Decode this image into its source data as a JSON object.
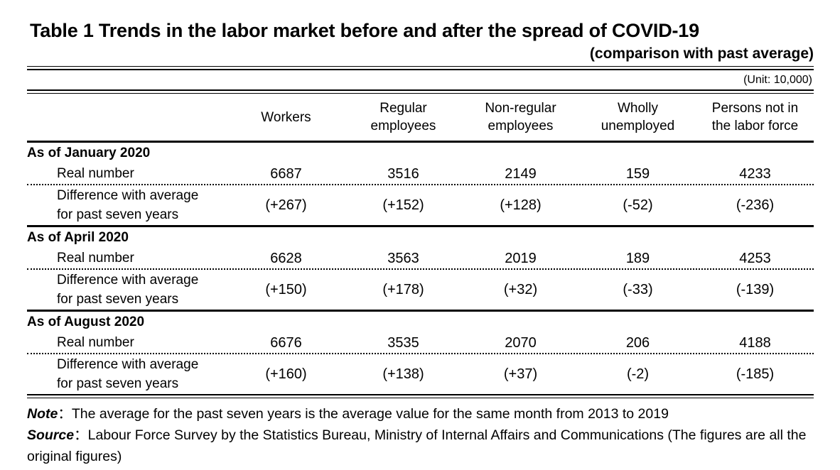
{
  "title": "Table 1 Trends in the labor market before and after the spread of COVID-19",
  "subtitle": "(comparison with past average)",
  "unit_note": "(Unit: 10,000)",
  "table": {
    "columns_display": [
      "Workers",
      "Regular\nemployees",
      "Non-regular\nemployees",
      "Wholly\nunemployed",
      "Persons not in\nthe labor force"
    ],
    "row_labels": {
      "real": "Real number",
      "diff": "Difference with average\nfor past seven years"
    },
    "sections": [
      {
        "label": "As of January 2020",
        "real": [
          "6687",
          "3516",
          "2149",
          "159",
          "4233"
        ],
        "diff": [
          "(+267)",
          "(+152)",
          "(+128)",
          "(-52)",
          "(-236)"
        ]
      },
      {
        "label": "As of April 2020",
        "real": [
          "6628",
          "3563",
          "2019",
          "189",
          "4253"
        ],
        "diff": [
          "(+150)",
          "(+178)",
          "(+32)",
          "(-33)",
          "(-139)"
        ]
      },
      {
        "label": "As of August 2020",
        "real": [
          "6676",
          "3535",
          "2070",
          "206",
          "4188"
        ],
        "diff": [
          "(+160)",
          "(+138)",
          "(+37)",
          "(-2)",
          "(-185)"
        ]
      }
    ]
  },
  "notes": {
    "note_label": "Note",
    "note_sep": "：",
    "note_text": "The average for the past seven years is the average value for the same month from 2013 to 2019",
    "source_label": "Source",
    "source_sep": "：",
    "source_text": "Labour Force Survey by the Statistics Bureau, Ministry of Internal Affairs and Communications (The figures are all the original figures)"
  },
  "chart_data": {
    "type": "table",
    "title": "Table 1 Trends in the labor market before and after the spread of COVID-19",
    "subtitle": "(comparison with past average)",
    "unit": "(Unit: 10,000)",
    "columns": [
      "Workers",
      "Regular employees",
      "Non-regular employees",
      "Wholly unemployed",
      "Persons not in the labor force"
    ],
    "rows": [
      {
        "group": "As of January 2020",
        "real_number": [
          6687,
          3516,
          2149,
          159,
          4233
        ],
        "difference_with_past_average": [
          267,
          152,
          128,
          -52,
          -236
        ]
      },
      {
        "group": "As of April 2020",
        "real_number": [
          6628,
          3563,
          2019,
          189,
          4253
        ],
        "difference_with_past_average": [
          150,
          178,
          32,
          -33,
          -139
        ]
      },
      {
        "group": "As of August 2020",
        "real_number": [
          6676,
          3535,
          2070,
          206,
          4188
        ],
        "difference_with_past_average": [
          160,
          138,
          37,
          -2,
          -185
        ]
      }
    ],
    "note": "The average for the past seven years is the average value for the same month from 2013 to 2019",
    "source": "Labour Force Survey by the Statistics Bureau, Ministry of Internal Affairs and Communications (The figures are all the original figures)"
  }
}
